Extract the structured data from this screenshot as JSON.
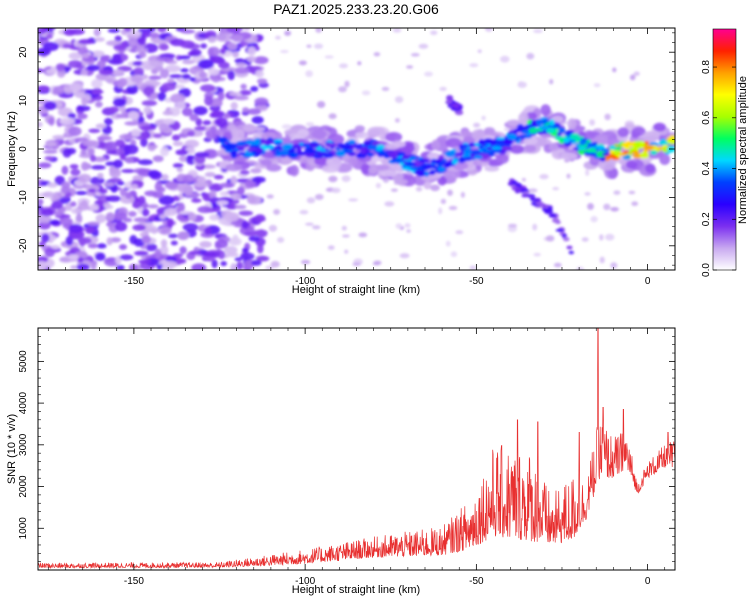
{
  "title": "PAZ1.2025.233.23.20.G06",
  "chart_data": [
    {
      "type": "heatmap",
      "xlabel": "Height of straight line (km)",
      "ylabel": "Frequency (Hz)",
      "xlim": [
        -178,
        8
      ],
      "ylim": [
        -25,
        25
      ],
      "x_ticks": [
        -150,
        -100,
        -50,
        0
      ],
      "y_ticks": [
        -20,
        -10,
        0,
        10,
        20
      ],
      "colorbar": {
        "label": "Normalized spectral amplitude",
        "range": [
          0,
          0.95
        ],
        "ticks": [
          0.0,
          0.2,
          0.4,
          0.6,
          0.8
        ],
        "colors": [
          "#ffffff",
          "#c8a8f0",
          "#7b2ff0",
          "#2a00ff",
          "#0040ff",
          "#00d8ff",
          "#00ff60",
          "#a8ff00",
          "#ffff00",
          "#ffa000",
          "#ff2000",
          "#ff0090"
        ]
      },
      "ridge": [
        {
          "x": -122,
          "f": 0
        },
        {
          "x": -110,
          "f": 0.5
        },
        {
          "x": -100,
          "f": -0.5
        },
        {
          "x": -90,
          "f": 0
        },
        {
          "x": -80,
          "f": 0
        },
        {
          "x": -70,
          "f": -3
        },
        {
          "x": -63,
          "f": -4
        },
        {
          "x": -55,
          "f": -1
        },
        {
          "x": -48,
          "f": 0
        },
        {
          "x": -42,
          "f": 1
        },
        {
          "x": -35,
          "f": 4
        },
        {
          "x": -30,
          "f": 5
        },
        {
          "x": -25,
          "f": 3
        },
        {
          "x": -20,
          "f": 1
        },
        {
          "x": -12,
          "f": -1
        },
        {
          "x": -5,
          "f": 0
        },
        {
          "x": 0,
          "f": 0
        },
        {
          "x": 8,
          "f": 1
        }
      ],
      "branches": [
        [
          {
            "x": -40,
            "f": -7
          },
          {
            "x": -28,
            "f": -13
          },
          {
            "x": -22,
            "f": -22
          }
        ],
        [
          {
            "x": -58,
            "f": 10
          },
          {
            "x": -55,
            "f": 8
          }
        ]
      ]
    },
    {
      "type": "line",
      "xlabel": "Height of straight line (km)",
      "ylabel": "SNR (10 * v/v)",
      "xlim": [
        -178,
        8
      ],
      "ylim": [
        0,
        5800
      ],
      "x_ticks": [
        -150,
        -100,
        -50,
        0
      ],
      "y_ticks": [
        1000,
        2000,
        3000,
        4000,
        5000
      ],
      "series": [
        {
          "name": "SNR",
          "color": "#e83030",
          "envelope": [
            {
              "x": -178,
              "base": 50,
              "amp": 120
            },
            {
              "x": -125,
              "base": 60,
              "amp": 130
            },
            {
              "x": -112,
              "base": 100,
              "amp": 250
            },
            {
              "x": -100,
              "base": 150,
              "amp": 350
            },
            {
              "x": -80,
              "base": 300,
              "amp": 500
            },
            {
              "x": -60,
              "base": 350,
              "amp": 700
            },
            {
              "x": -52,
              "base": 500,
              "amp": 1200
            },
            {
              "x": -45,
              "base": 800,
              "amp": 2200
            },
            {
              "x": -35,
              "base": 700,
              "amp": 2300
            },
            {
              "x": -28,
              "base": 600,
              "amp": 1200
            },
            {
              "x": -22,
              "base": 700,
              "amp": 1600
            },
            {
              "x": -18,
              "base": 1200,
              "amp": 1000
            },
            {
              "x": -14,
              "base": 2200,
              "amp": 1500
            },
            {
              "x": -10,
              "base": 2200,
              "amp": 1000
            },
            {
              "x": -6,
              "base": 2400,
              "amp": 1000
            },
            {
              "x": -3,
              "base": 1800,
              "amp": 300
            },
            {
              "x": 0,
              "base": 2200,
              "amp": 400
            },
            {
              "x": 6,
              "base": 2500,
              "amp": 600
            },
            {
              "x": 8,
              "base": 2400,
              "amp": 700
            }
          ],
          "spikes": [
            {
              "x": -38,
              "y": 3600
            },
            {
              "x": -32,
              "y": 3550
            },
            {
              "x": -20,
              "y": 3300
            },
            {
              "x": -14.5,
              "y": 5800
            },
            {
              "x": -13,
              "y": 3900
            },
            {
              "x": -7,
              "y": 3850
            },
            {
              "x": 6,
              "y": 3300
            },
            {
              "x": 7.5,
              "y": 3000
            }
          ]
        }
      ]
    }
  ]
}
